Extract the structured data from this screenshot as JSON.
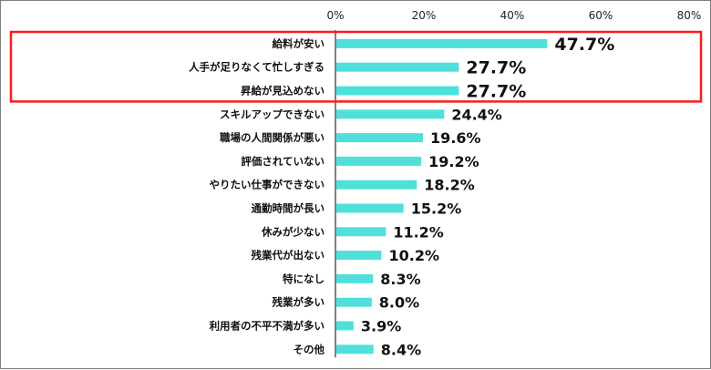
{
  "chart_data": {
    "type": "bar",
    "orientation": "horizontal",
    "title": "",
    "xlabel": "",
    "ylabel": "",
    "xlim": [
      0,
      80
    ],
    "ticks": [
      "0%",
      "20%",
      "40%",
      "60%",
      "80%"
    ],
    "tick_values": [
      0,
      20,
      40,
      60,
      80
    ],
    "categories": [
      "給料が安い",
      "人手が足りなくて忙しすぎる",
      "昇給が見込めない",
      "スキルアップできない",
      "職場の人間関係が悪い",
      "評価されていない",
      "やりたい仕事ができない",
      "通勤時間が長い",
      "休みが少ない",
      "残業代が出ない",
      "特になし",
      "残業が多い",
      "利用者の不平不満が多い",
      "その他"
    ],
    "values": [
      47.7,
      27.7,
      27.7,
      24.4,
      19.6,
      19.2,
      18.2,
      15.2,
      11.2,
      10.2,
      8.3,
      8.0,
      3.9,
      8.4
    ],
    "value_labels": [
      "47.7%",
      "27.7%",
      "27.7%",
      "24.4%",
      "19.6%",
      "19.2%",
      "18.2%",
      "15.2%",
      "11.2%",
      "10.2%",
      "8.3%",
      "8.0%",
      "3.9%",
      "8.4%"
    ],
    "highlighted_count": 3,
    "bar_color": "#4fe0dc",
    "highlight_color": "#ff1a1a",
    "axis_color": "#000000"
  }
}
